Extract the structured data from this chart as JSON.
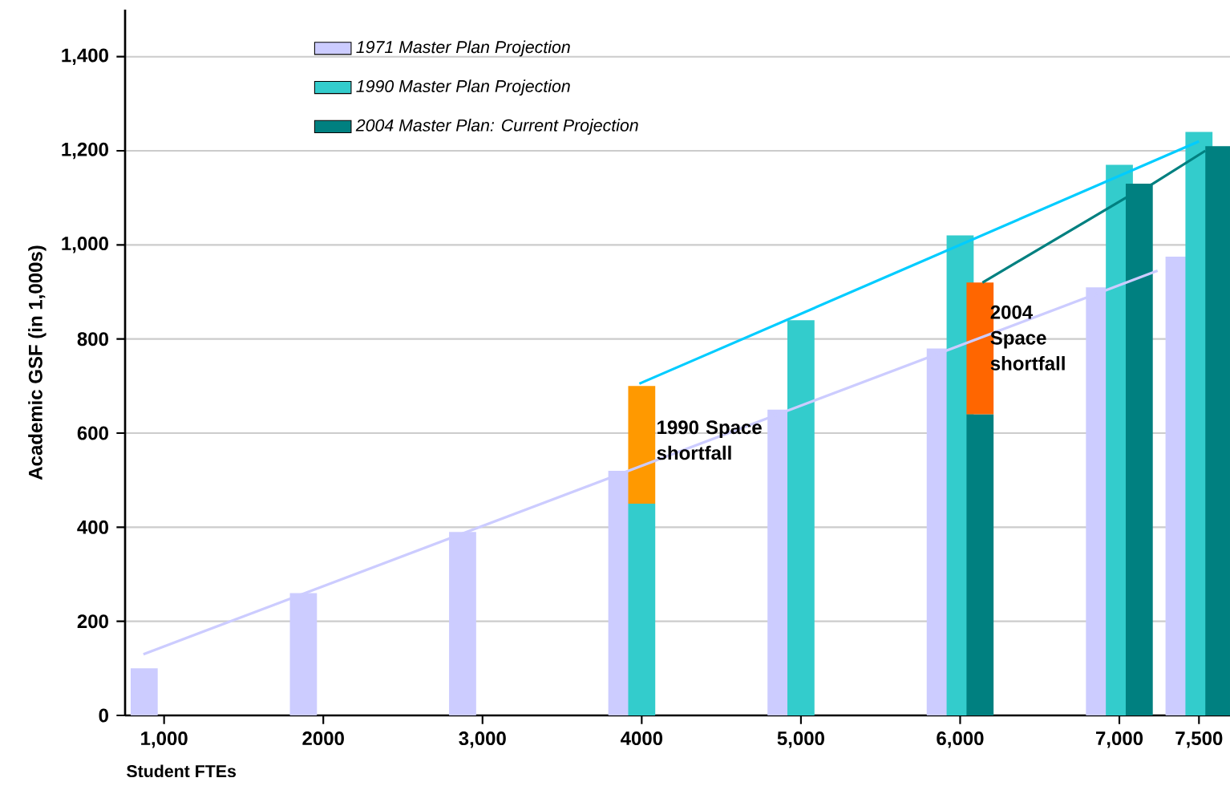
{
  "chart_data": {
    "type": "bar",
    "xlabel": "Student FTEs",
    "ylabel": "Academic GSF (in 1,000s)",
    "x": [
      1000,
      2000,
      3000,
      4000,
      5000,
      6000,
      7000,
      7500
    ],
    "xlim": [
      755,
      7695
    ],
    "xticks": [
      {
        "value": 1000,
        "label": "1,000"
      },
      2000,
      {
        "value": 3000,
        "label": "3,000"
      },
      4000,
      {
        "value": 5000,
        "label": "5,000"
      },
      {
        "value": 6000,
        "label": "6,000"
      },
      {
        "value": 7000,
        "label": "7,000"
      },
      {
        "value": 7500,
        "label": "7,500"
      }
    ],
    "ylim": [
      0,
      1500
    ],
    "yticks": [
      0,
      200,
      400,
      600,
      800,
      {
        "value": 1000,
        "label": "1,000"
      },
      {
        "value": 1200,
        "label": "1,200"
      },
      {
        "value": 1400,
        "label": "1,400"
      }
    ],
    "grid": "y",
    "legend": "top",
    "series": [
      {
        "name": "1971 Master Plan Projection",
        "color": "#ccccff",
        "values": [
          100,
          260,
          390,
          520,
          650,
          780,
          910,
          975
        ]
      },
      {
        "name": "1990 Master Plan Projection",
        "color": "#33cccc",
        "values": [
          null,
          null,
          null,
          450,
          840,
          1020,
          1170,
          1240
        ]
      },
      {
        "type": "bar",
        "color": "#ff9900",
        "x": [
          4000
        ],
        "base": [
          450
        ],
        "values": [
          250
        ]
      },
      {
        "name": "2004 Master Plan: Current Projection",
        "color": "#008080",
        "values": [
          null,
          null,
          null,
          null,
          null,
          640,
          1130,
          1210
        ]
      },
      {
        "type": "bar",
        "color": "#ff6600",
        "x": [
          6000
        ],
        "base": [
          640
        ],
        "values": [
          280
        ]
      },
      {
        "type": "line",
        "color": "#ccccff",
        "x": [
          870,
          7240
        ],
        "values": [
          130,
          945
        ]
      },
      {
        "type": "line",
        "color": "#00ccff",
        "x": [
          3985,
          7500
        ],
        "values": [
          705,
          1220
        ]
      },
      {
        "type": "line",
        "color": "#008080",
        "x": [
          6140,
          7040,
          7210,
          7540
        ],
        "values": [
          920,
          1100,
          1130,
          1200
        ]
      }
    ],
    "annotations": [
      "1990 Space shortfall",
      "2004 Space shortfall"
    ]
  }
}
